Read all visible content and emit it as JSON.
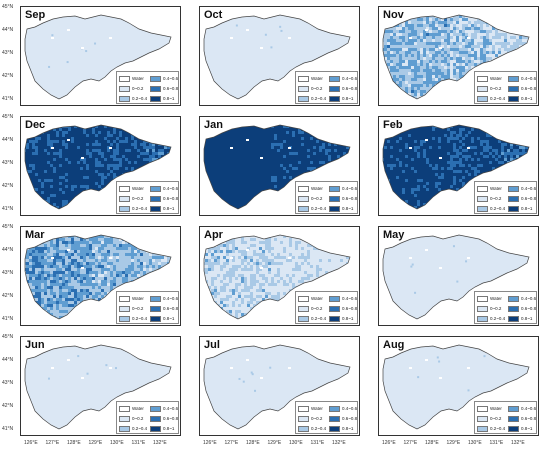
{
  "colors": {
    "water": "#ffffff",
    "class_0_0_2": "#dbe7f4",
    "class_0_2_0_4": "#a9c9e6",
    "class_0_4_0_6": "#5f9dd1",
    "class_0_6_0_8": "#2b6fb2",
    "class_0_8_1": "#0c3e7a",
    "outline": "#444444"
  },
  "legend": [
    {
      "label": "Water",
      "color_key": "water"
    },
    {
      "label": "0~0.2",
      "color_key": "class_0_0_2"
    },
    {
      "label": "0.2~0.4",
      "color_key": "class_0_2_0_4"
    },
    {
      "label": "0.4~0.6",
      "color_key": "class_0_4_0_6"
    },
    {
      "label": "0.6~0.8",
      "color_key": "class_0_6_0_8"
    },
    {
      "label": "0.8~1",
      "color_key": "class_0_8_1"
    }
  ],
  "y_axis_labels": [
    "45°N",
    "44°N",
    "43°N",
    "42°N",
    "41°N"
  ],
  "x_axis_labels": [
    "126°E",
    "127°E",
    "128°E",
    "129°E",
    "130°E",
    "131°E",
    "132°E"
  ],
  "panels": [
    {
      "month": "Sep",
      "intensity": 0.05
    },
    {
      "month": "Oct",
      "intensity": 0.07
    },
    {
      "month": "Nov",
      "intensity": 0.3
    },
    {
      "month": "Dec",
      "intensity": 0.85
    },
    {
      "month": "Jan",
      "intensity": 0.95
    },
    {
      "month": "Feb",
      "intensity": 0.88
    },
    {
      "month": "Mar",
      "intensity": 0.4
    },
    {
      "month": "Apr",
      "intensity": 0.12
    },
    {
      "month": "May",
      "intensity": 0.05
    },
    {
      "month": "Jun",
      "intensity": 0.04
    },
    {
      "month": "Jul",
      "intensity": 0.05
    },
    {
      "month": "Aug",
      "intensity": 0.05
    }
  ]
}
